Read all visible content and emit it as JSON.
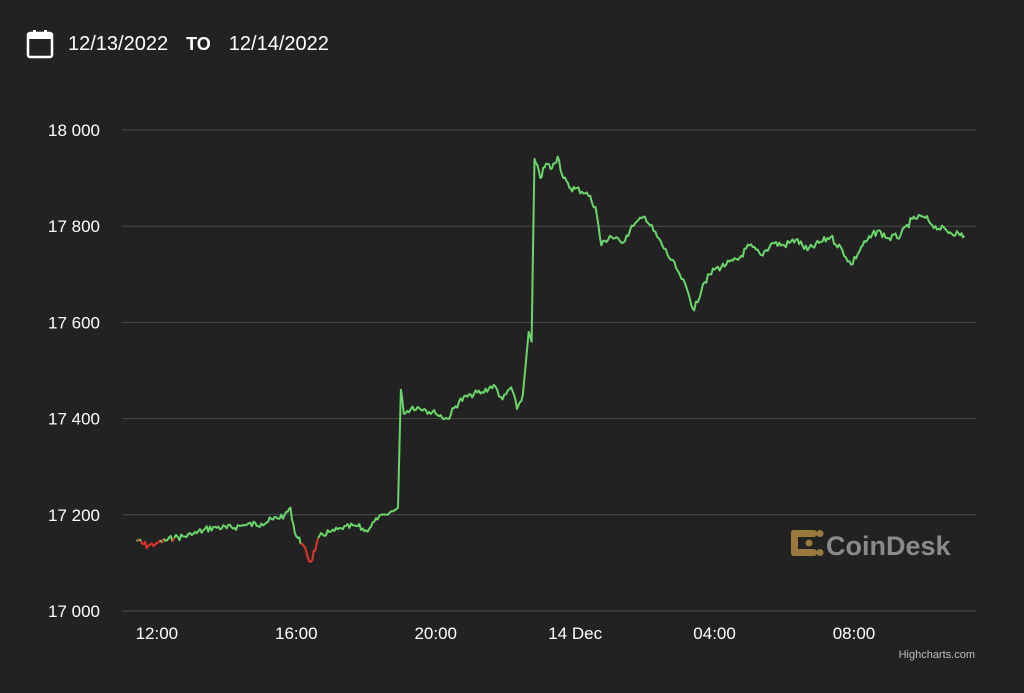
{
  "header": {
    "icon": "calendar-icon",
    "from_date": "12/13/2022",
    "to_label": "TO",
    "to_date": "12/14/2022"
  },
  "watermark": {
    "text": "CoinDesk",
    "logo_color": "#9a7a3c"
  },
  "credits": "Highcharts.com",
  "colors": {
    "up": "#6bd46b",
    "down": "#e0342a",
    "grid": "#4a4a4a",
    "background": "#222222"
  },
  "chart_data": {
    "type": "line",
    "x_range": [
      "12/13/2022 11:00",
      "12/14/2022 11:30"
    ],
    "ylim": [
      17000,
      18000
    ],
    "grid": true,
    "y_ticks": [
      {
        "value": 18000,
        "label": "18 000"
      },
      {
        "value": 17800,
        "label": "17 800"
      },
      {
        "value": 17600,
        "label": "17 600"
      },
      {
        "value": 17400,
        "label": "17 400"
      },
      {
        "value": 17200,
        "label": "17 200"
      },
      {
        "value": 17000,
        "label": "17 000"
      }
    ],
    "x_ticks": [
      {
        "time": "12/13/2022 12:00",
        "label": "12:00"
      },
      {
        "time": "12/13/2022 16:00",
        "label": "16:00"
      },
      {
        "time": "12/13/2022 20:00",
        "label": "20:00"
      },
      {
        "time": "12/14/2022 00:00",
        "label": "14 Dec"
      },
      {
        "time": "12/14/2022 04:00",
        "label": "04:00"
      },
      {
        "time": "12/14/2022 08:00",
        "label": "08:00"
      }
    ],
    "threshold": 17148,
    "series": [
      {
        "points": [
          [
            "12/13/2022 11:25",
            17148
          ],
          [
            "12/13/2022 11:35",
            17140
          ],
          [
            "12/13/2022 11:45",
            17135
          ],
          [
            "12/13/2022 12:00",
            17142
          ],
          [
            "12/13/2022 12:15",
            17146
          ],
          [
            "12/13/2022 12:30",
            17152
          ],
          [
            "12/13/2022 12:45",
            17155
          ],
          [
            "12/13/2022 13:00",
            17158
          ],
          [
            "12/13/2022 13:20",
            17168
          ],
          [
            "12/13/2022 13:40",
            17175
          ],
          [
            "12/13/2022 14:00",
            17172
          ],
          [
            "12/13/2022 14:30",
            17178
          ],
          [
            "12/13/2022 15:00",
            17182
          ],
          [
            "12/13/2022 15:20",
            17190
          ],
          [
            "12/13/2022 15:40",
            17200
          ],
          [
            "12/13/2022 15:50",
            17215
          ],
          [
            "12/13/2022 15:55",
            17180
          ],
          [
            "12/13/2022 16:00",
            17155
          ],
          [
            "12/13/2022 16:10",
            17140
          ],
          [
            "12/13/2022 16:20",
            17110
          ],
          [
            "12/13/2022 16:25",
            17102
          ],
          [
            "12/13/2022 16:35",
            17140
          ],
          [
            "12/13/2022 16:45",
            17160
          ],
          [
            "12/13/2022 17:00",
            17165
          ],
          [
            "12/13/2022 17:20",
            17170
          ],
          [
            "12/13/2022 17:40",
            17178
          ],
          [
            "12/13/2022 18:00",
            17168
          ],
          [
            "12/13/2022 18:20",
            17190
          ],
          [
            "12/13/2022 18:35",
            17200
          ],
          [
            "12/13/2022 18:50",
            17210
          ],
          [
            "12/13/2022 18:55",
            17215
          ],
          [
            "12/13/2022 19:00",
            17460
          ],
          [
            "12/13/2022 19:05",
            17410
          ],
          [
            "12/13/2022 19:20",
            17425
          ],
          [
            "12/13/2022 19:40",
            17420
          ],
          [
            "12/13/2022 20:00",
            17410
          ],
          [
            "12/13/2022 20:20",
            17400
          ],
          [
            "12/13/2022 20:40",
            17435
          ],
          [
            "12/13/2022 21:00",
            17450
          ],
          [
            "12/13/2022 21:20",
            17455
          ],
          [
            "12/13/2022 21:40",
            17470
          ],
          [
            "12/13/2022 21:55",
            17440
          ],
          [
            "12/13/2022 22:10",
            17465
          ],
          [
            "12/13/2022 22:20",
            17420
          ],
          [
            "12/13/2022 22:30",
            17450
          ],
          [
            "12/13/2022 22:40",
            17580
          ],
          [
            "12/13/2022 22:45",
            17560
          ],
          [
            "12/13/2022 22:50",
            17940
          ],
          [
            "12/13/2022 23:00",
            17900
          ],
          [
            "12/13/2022 23:10",
            17930
          ],
          [
            "12/13/2022 23:20",
            17920
          ],
          [
            "12/13/2022 23:30",
            17945
          ],
          [
            "12/13/2022 23:40",
            17900
          ],
          [
            "12/13/2022 23:50",
            17880
          ],
          [
            "12/14/2022 00:00",
            17878
          ],
          [
            "12/14/2022 00:20",
            17870
          ],
          [
            "12/14/2022 00:35",
            17840
          ],
          [
            "12/14/2022 00:45",
            17760
          ],
          [
            "12/14/2022 01:00",
            17780
          ],
          [
            "12/14/2022 01:20",
            17765
          ],
          [
            "12/14/2022 01:40",
            17800
          ],
          [
            "12/14/2022 02:00",
            17820
          ],
          [
            "12/14/2022 02:15",
            17790
          ],
          [
            "12/14/2022 02:30",
            17760
          ],
          [
            "12/14/2022 02:45",
            17730
          ],
          [
            "12/14/2022 03:00",
            17700
          ],
          [
            "12/14/2022 03:15",
            17660
          ],
          [
            "12/14/2022 03:25",
            17625
          ],
          [
            "12/14/2022 03:40",
            17680
          ],
          [
            "12/14/2022 04:00",
            17710
          ],
          [
            "12/14/2022 04:20",
            17720
          ],
          [
            "12/14/2022 04:40",
            17730
          ],
          [
            "12/14/2022 05:00",
            17760
          ],
          [
            "12/14/2022 05:20",
            17740
          ],
          [
            "12/14/2022 05:40",
            17765
          ],
          [
            "12/14/2022 06:00",
            17760
          ],
          [
            "12/14/2022 06:20",
            17772
          ],
          [
            "12/14/2022 06:40",
            17750
          ],
          [
            "12/14/2022 07:00",
            17765
          ],
          [
            "12/14/2022 07:20",
            17778
          ],
          [
            "12/14/2022 07:40",
            17750
          ],
          [
            "12/14/2022 07:55",
            17720
          ],
          [
            "12/14/2022 08:15",
            17760
          ],
          [
            "12/14/2022 08:40",
            17790
          ],
          [
            "12/14/2022 09:00",
            17775
          ],
          [
            "12/14/2022 09:20",
            17780
          ],
          [
            "12/14/2022 09:40",
            17815
          ],
          [
            "12/14/2022 10:00",
            17820
          ],
          [
            "12/14/2022 10:20",
            17800
          ],
          [
            "12/14/2022 10:40",
            17790
          ],
          [
            "12/14/2022 11:00",
            17785
          ],
          [
            "12/14/2022 11:10",
            17780
          ]
        ]
      }
    ]
  }
}
